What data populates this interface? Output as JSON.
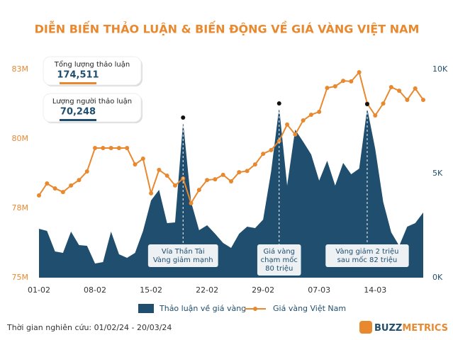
{
  "title": "DIỄN BIẾN THẢO LUẬN & BIẾN ĐỘNG VỀ GIÁ VÀNG VIỆT NAM",
  "stats": [
    {
      "label": "Tổng lượng thảo luận",
      "value": "174,511",
      "color": "#e8892f"
    },
    {
      "label": "Lượng người thảo luận",
      "value": "70,248",
      "color": "#1f4e6e"
    }
  ],
  "footer": "Thời gian nghiên cứu: 01/02/24 - 20/03/24",
  "brand": [
    "BUZZ",
    "METRICS"
  ],
  "chart_data": {
    "type": "combo",
    "categories": [
      "01-02",
      null,
      null,
      null,
      null,
      null,
      null,
      "08-02",
      null,
      null,
      null,
      null,
      null,
      null,
      "15-02",
      null,
      null,
      null,
      null,
      null,
      null,
      "22-02",
      null,
      null,
      null,
      null,
      null,
      null,
      "29-02",
      null,
      null,
      null,
      null,
      null,
      null,
      "07-03",
      null,
      null,
      null,
      null,
      null,
      null,
      "14-03",
      null,
      null,
      null,
      null,
      null,
      null
    ],
    "series": [
      {
        "name": "Thảo luận về giá vàng",
        "type": "area",
        "axis": "y2",
        "color": "#1f4e6e",
        "values": [
          2347,
          2245,
          1258,
          1190,
          2211,
          1564,
          1530,
          680,
          748,
          2211,
          1122,
          952,
          1190,
          2245,
          3707,
          4217,
          2619,
          2653,
          7482,
          3639,
          2279,
          2517,
          2109,
          1666,
          1428,
          2109,
          2449,
          2381,
          2789,
          5102,
          8162,
          4421,
          7108,
          6530,
          5918,
          4659,
          5612,
          4421,
          5510,
          4966,
          5238,
          8128,
          6190,
          3639,
          2177,
          1530,
          2449,
          2619,
          3129
        ]
      },
      {
        "name": "Giá vàng Việt Nam",
        "type": "line",
        "axis": "y",
        "color": "#e8892f",
        "values": [
          78.16,
          78.62,
          78.43,
          78.29,
          78.54,
          78.75,
          79.08,
          79.98,
          79.98,
          79.98,
          79.98,
          79.98,
          79.35,
          79.57,
          78.24,
          79.14,
          78.92,
          78.54,
          78.81,
          77.86,
          78.37,
          78.75,
          78.78,
          78.95,
          78.7,
          79.05,
          79.1,
          79.35,
          79.76,
          79.9,
          80.25,
          80.88,
          80.5,
          81.04,
          81.26,
          81.37,
          82.29,
          82.35,
          82.56,
          82.54,
          82.89,
          81.69,
          81.23,
          81.69,
          82.32,
          82.18,
          81.83,
          82.27,
          81.83
        ]
      }
    ],
    "ylim": [
      75,
      83
    ],
    "yticks": [
      {
        "value": 75,
        "label": "75M"
      },
      {
        "value": 77.667,
        "label": "78M"
      },
      {
        "value": 80.333,
        "label": "80M"
      },
      {
        "value": 83,
        "label": "83M"
      }
    ],
    "y2lim": [
      0,
      10000
    ],
    "y2ticks": [
      {
        "value": 0,
        "label": "0K"
      },
      {
        "value": 5000,
        "label": "5K"
      },
      {
        "value": 10000,
        "label": "10K"
      }
    ],
    "annotations": [
      {
        "index": 18,
        "lines": [
          "Vía Thần Tài",
          "Vàng giảm mạnh"
        ]
      },
      {
        "index": 30,
        "lines": [
          "Giá vàng",
          "chạm mốc",
          "80 triệu"
        ]
      },
      {
        "index": 41,
        "lines": [
          "Vàng giảm 2 triệu",
          "sau mốc 82 triệu"
        ]
      }
    ]
  }
}
